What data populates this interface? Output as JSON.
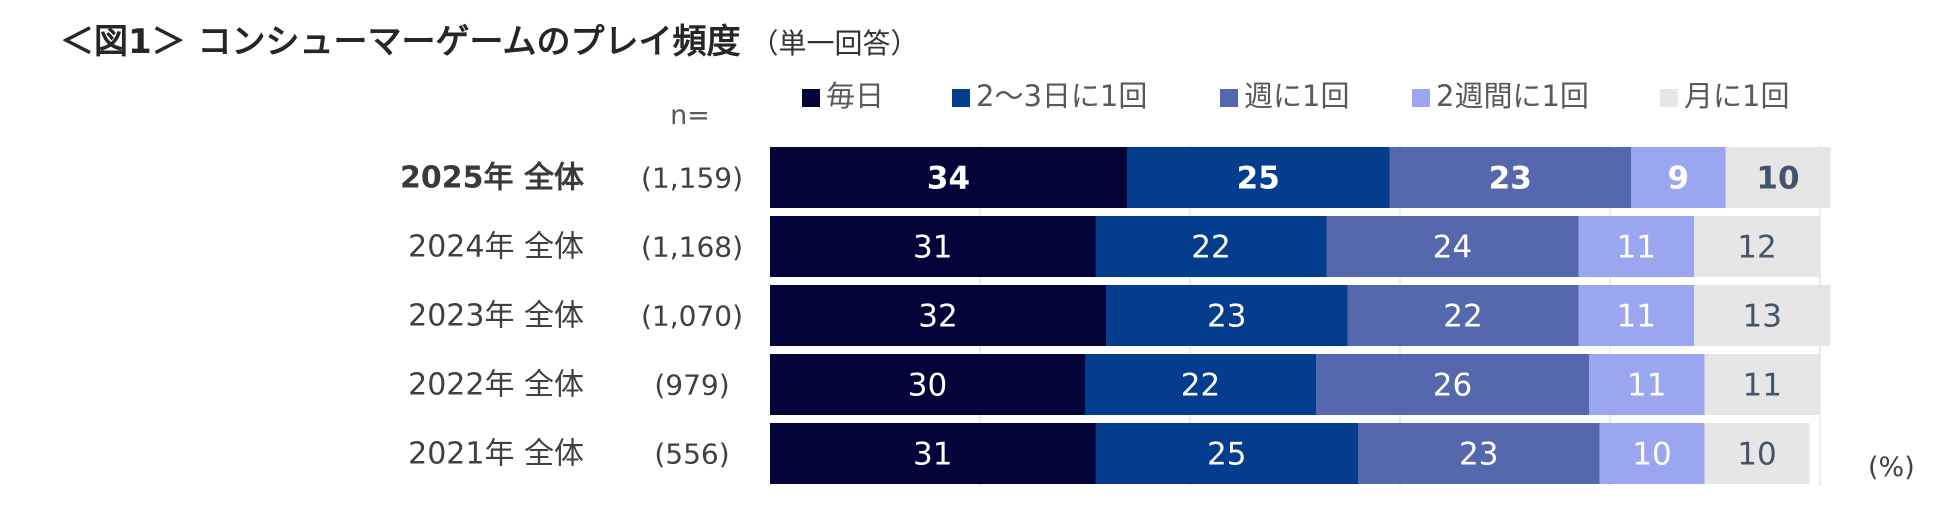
{
  "title": {
    "main": "＜図1＞ コンシューマーゲームのプレイ頻度",
    "note": "（単一回答）"
  },
  "n_label": "n=",
  "unit_label": "(%)",
  "colors": {
    "series": [
      "#03033a",
      "#053d8e",
      "#5668ad",
      "#9aa6f0",
      "#e6e6e6"
    ],
    "label_light": "#ffffff",
    "label_dark": "#44546a",
    "grid": "#d9d9d9"
  },
  "chart_data": {
    "type": "bar",
    "orientation": "horizontal",
    "stacked": true,
    "xlim": [
      0,
      100
    ],
    "legend_position": "top",
    "categories": [
      "2025年 全体",
      "2024年 全体",
      "2023年 全体",
      "2022年 全体",
      "2021年 全体"
    ],
    "n": [
      "(1,159)",
      "(1,168)",
      "(1,070)",
      "(979)",
      "(556)"
    ],
    "highlight_row": 0,
    "series": [
      {
        "name": "毎日",
        "values": [
          34,
          31,
          32,
          30,
          31
        ]
      },
      {
        "name": "2～3日に1回",
        "values": [
          25,
          22,
          23,
          22,
          25
        ]
      },
      {
        "name": "週に1回",
        "values": [
          23,
          24,
          22,
          26,
          23
        ]
      },
      {
        "name": "2週間に1回",
        "values": [
          9,
          11,
          11,
          11,
          10
        ]
      },
      {
        "name": "月に1回",
        "values": [
          10,
          12,
          13,
          11,
          10
        ]
      }
    ]
  }
}
